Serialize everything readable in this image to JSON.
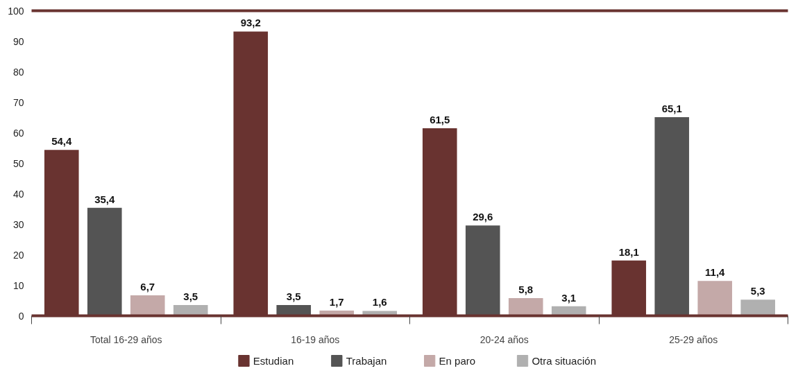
{
  "chart_data": {
    "type": "bar",
    "categories": [
      "Total 16-29 años",
      "16-19 años",
      "20-24 años",
      "25-29 años"
    ],
    "series": [
      {
        "name": "Estudian",
        "color": "#693330",
        "values": [
          54.4,
          93.2,
          61.5,
          18.1
        ],
        "value_labels": [
          "54,4",
          "93,2",
          "61,5",
          "18,1"
        ]
      },
      {
        "name": "Trabajan",
        "color": "#545454",
        "values": [
          35.4,
          3.5,
          29.6,
          65.1
        ],
        "value_labels": [
          "35,4",
          "3,5",
          "29,6",
          "65,1"
        ]
      },
      {
        "name": "En paro",
        "color": "#c4a9a8",
        "values": [
          6.7,
          1.7,
          5.8,
          11.4
        ],
        "value_labels": [
          "6,7",
          "1,7",
          "5,8",
          "11,4"
        ]
      },
      {
        "name": "Otra situación",
        "color": "#b0b0b0",
        "values": [
          3.5,
          1.6,
          3.1,
          5.3
        ],
        "value_labels": [
          "3,5",
          "1,6",
          "3,1",
          "5,3"
        ]
      }
    ],
    "ylim": [
      0,
      100
    ],
    "yticks": [
      0,
      10,
      20,
      30,
      40,
      50,
      60,
      70,
      80,
      90,
      100
    ],
    "grid": false,
    "legend": "bottom"
  }
}
